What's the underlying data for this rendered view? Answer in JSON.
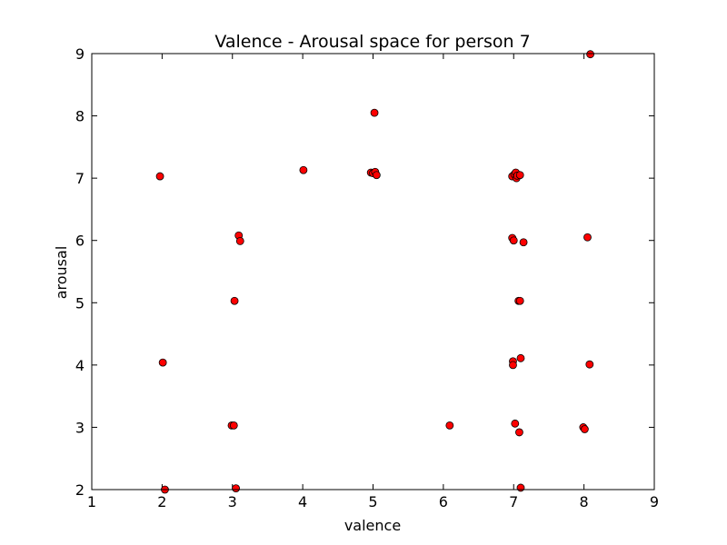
{
  "chart_data": {
    "type": "scatter",
    "title": "Valence - Arousal space for person 7",
    "xlabel": "valence",
    "ylabel": "arousal",
    "xlim": [
      1,
      9
    ],
    "ylim": [
      2,
      9
    ],
    "xticks": [
      "1",
      "2",
      "3",
      "4",
      "5",
      "6",
      "7",
      "8",
      "9"
    ],
    "yticks": [
      "2",
      "3",
      "4",
      "5",
      "6",
      "7",
      "8",
      "9"
    ],
    "grid": false,
    "marker_color": "#ff0000",
    "marker_edge_color": "#000000",
    "points": [
      {
        "x": 1.97,
        "y": 7.03
      },
      {
        "x": 2.01,
        "y": 4.04
      },
      {
        "x": 2.04,
        "y": 2.0
      },
      {
        "x": 2.99,
        "y": 3.03
      },
      {
        "x": 3.02,
        "y": 3.03
      },
      {
        "x": 3.03,
        "y": 5.03
      },
      {
        "x": 3.05,
        "y": 2.02
      },
      {
        "x": 3.09,
        "y": 6.08
      },
      {
        "x": 3.11,
        "y": 5.99
      },
      {
        "x": 4.01,
        "y": 7.13
      },
      {
        "x": 4.97,
        "y": 7.09
      },
      {
        "x": 5.0,
        "y": 7.08
      },
      {
        "x": 5.02,
        "y": 8.05
      },
      {
        "x": 5.03,
        "y": 7.1
      },
      {
        "x": 5.05,
        "y": 7.05
      },
      {
        "x": 6.09,
        "y": 3.03
      },
      {
        "x": 6.98,
        "y": 7.03
      },
      {
        "x": 6.98,
        "y": 6.04
      },
      {
        "x": 7.0,
        "y": 6.0
      },
      {
        "x": 6.99,
        "y": 4.06
      },
      {
        "x": 6.99,
        "y": 4.0
      },
      {
        "x": 7.01,
        "y": 7.06
      },
      {
        "x": 7.03,
        "y": 7.09
      },
      {
        "x": 7.04,
        "y": 7.0
      },
      {
        "x": 7.05,
        "y": 7.04
      },
      {
        "x": 7.09,
        "y": 7.05
      },
      {
        "x": 7.02,
        "y": 3.06
      },
      {
        "x": 7.07,
        "y": 5.03
      },
      {
        "x": 7.09,
        "y": 5.03
      },
      {
        "x": 7.08,
        "y": 2.92
      },
      {
        "x": 7.1,
        "y": 4.11
      },
      {
        "x": 7.1,
        "y": 2.03
      },
      {
        "x": 7.14,
        "y": 5.97
      },
      {
        "x": 7.99,
        "y": 3.0
      },
      {
        "x": 8.01,
        "y": 2.97
      },
      {
        "x": 8.05,
        "y": 6.05
      },
      {
        "x": 8.08,
        "y": 4.01
      },
      {
        "x": 8.09,
        "y": 8.99
      }
    ]
  }
}
